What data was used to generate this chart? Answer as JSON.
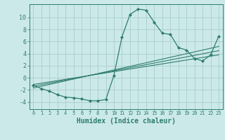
{
  "xlabel": "Humidex (Indice chaleur)",
  "background_color": "#cce9e9",
  "grid_color": "#aacccc",
  "line_color": "#2e7d6e",
  "xlim": [
    -0.5,
    23.5
  ],
  "ylim": [
    -5.2,
    12.2
  ],
  "yticks": [
    -4,
    -2,
    0,
    2,
    4,
    6,
    8,
    10
  ],
  "xticks": [
    0,
    1,
    2,
    3,
    4,
    5,
    6,
    7,
    8,
    9,
    10,
    11,
    12,
    13,
    14,
    15,
    16,
    17,
    18,
    19,
    20,
    21,
    22,
    23
  ],
  "main_x": [
    0,
    1,
    2,
    3,
    4,
    5,
    6,
    7,
    8,
    9,
    10,
    11,
    12,
    13,
    14,
    15,
    16,
    17,
    18,
    19,
    20,
    21,
    22,
    23
  ],
  "main_y": [
    -1.2,
    -1.8,
    -2.2,
    -2.8,
    -3.2,
    -3.3,
    -3.5,
    -3.8,
    -3.8,
    -3.6,
    0.4,
    6.8,
    10.5,
    11.4,
    11.2,
    9.2,
    7.4,
    7.2,
    5.0,
    4.6,
    3.2,
    2.8,
    3.8,
    6.9
  ],
  "line1_x": [
    0,
    23
  ],
  "line1_y": [
    -1.7,
    5.2
  ],
  "line2_x": [
    0,
    23
  ],
  "line2_y": [
    -1.4,
    4.5
  ],
  "line3_x": [
    0,
    23
  ],
  "line3_y": [
    -1.1,
    3.8
  ],
  "xlabel_fontsize": 7.0,
  "tick_fontsize_x": 5.0,
  "tick_fontsize_y": 6.0
}
